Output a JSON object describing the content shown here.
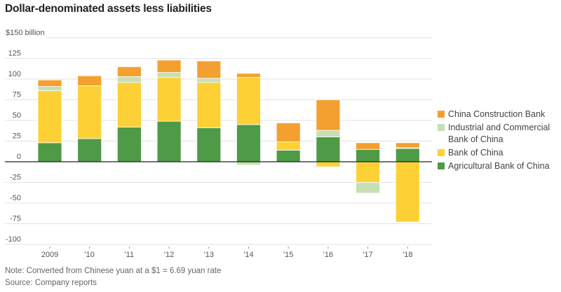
{
  "chart_data": {
    "type": "bar",
    "stacked": true,
    "title": "Dollar-denominated assets less liabilities",
    "ylabel_unit": "$150 billion",
    "xlabel": "",
    "ylabel": "",
    "ylim": [
      -100,
      150
    ],
    "yticks": [
      150,
      125,
      100,
      75,
      50,
      25,
      0,
      -25,
      -50,
      -75,
      -100
    ],
    "ytick_labels": [
      "$150 billion",
      "125",
      "100",
      "75",
      "50",
      "25",
      "0",
      "-25",
      "-50",
      "-75",
      "-100"
    ],
    "categories": [
      "2009",
      "'10",
      "'11",
      "'12",
      "'13",
      "'14",
      "'15",
      "'16",
      "'17",
      "'18"
    ],
    "grid": true,
    "legend_position": "right",
    "series": [
      {
        "name": "Agricultural Bank of China",
        "color": "#4e9a46",
        "values": [
          23,
          28,
          42,
          49,
          41,
          45,
          14,
          30,
          15,
          16
        ]
      },
      {
        "name": "Bank of China",
        "color": "#fdd135",
        "values": [
          63,
          64,
          54,
          53,
          55,
          57,
          10,
          -6,
          -25,
          -73
        ]
      },
      {
        "name": "Industrial and Commercial Bank of China",
        "color": "#c6e0b4",
        "values": [
          5,
          0,
          7,
          6,
          5,
          -4,
          0,
          8,
          -13,
          1
        ]
      },
      {
        "name": "China Construction Bank",
        "color": "#f4a030",
        "values": [
          8,
          12,
          12,
          15,
          21,
          5,
          23,
          37,
          8,
          6
        ]
      }
    ],
    "note": "Note: Converted from Chinese yuan at a $1 = 6.69 yuan rate",
    "source": "Source: Company reports"
  },
  "legend": [
    {
      "label": "China Construction Bank",
      "color": "#f4a030"
    },
    {
      "label": "Industrial and Commercial Bank of China",
      "color": "#c6e0b4"
    },
    {
      "label": "Bank of China",
      "color": "#fdd135"
    },
    {
      "label": "Agricultural Bank of China",
      "color": "#4e9a46"
    }
  ]
}
